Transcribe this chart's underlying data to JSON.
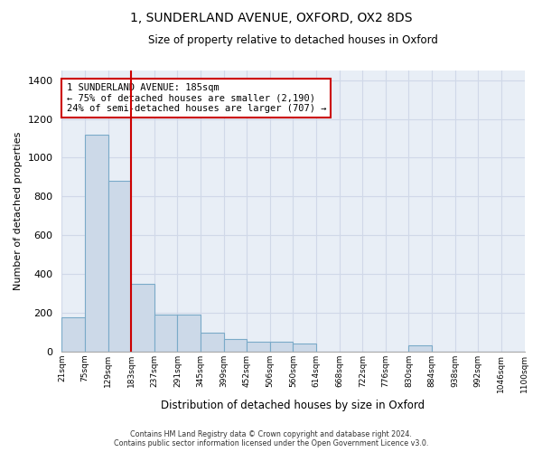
{
  "title": "1, SUNDERLAND AVENUE, OXFORD, OX2 8DS",
  "subtitle": "Size of property relative to detached houses in Oxford",
  "xlabel": "Distribution of detached houses by size in Oxford",
  "ylabel": "Number of detached properties",
  "bar_color": "#ccd9e8",
  "bar_edge_color": "#7aaac8",
  "grid_color": "#d0d8e8",
  "background_color": "#e8eef6",
  "annotation_box_color": "#cc0000",
  "property_line_color": "#cc0000",
  "annotation_line1": "1 SUNDERLAND AVENUE: 185sqm",
  "annotation_line2": "← 75% of detached houses are smaller (2,190)",
  "annotation_line3": "24% of semi-detached houses are larger (707) →",
  "footer_line1": "Contains HM Land Registry data © Crown copyright and database right 2024.",
  "footer_line2": "Contains public sector information licensed under the Open Government Licence v3.0.",
  "bin_labels": [
    "21sqm",
    "75sqm",
    "129sqm",
    "183sqm",
    "237sqm",
    "291sqm",
    "345sqm",
    "399sqm",
    "452sqm",
    "506sqm",
    "560sqm",
    "614sqm",
    "668sqm",
    "722sqm",
    "776sqm",
    "830sqm",
    "884sqm",
    "938sqm",
    "992sqm",
    "1046sqm",
    "1100sqm"
  ],
  "bar_heights": [
    175,
    1120,
    880,
    350,
    190,
    190,
    95,
    65,
    50,
    50,
    40,
    0,
    0,
    0,
    0,
    30,
    0,
    0,
    0,
    0
  ],
  "ylim": [
    0,
    1450
  ],
  "yticks": [
    0,
    200,
    400,
    600,
    800,
    1000,
    1200,
    1400
  ],
  "property_line_x": 3
}
